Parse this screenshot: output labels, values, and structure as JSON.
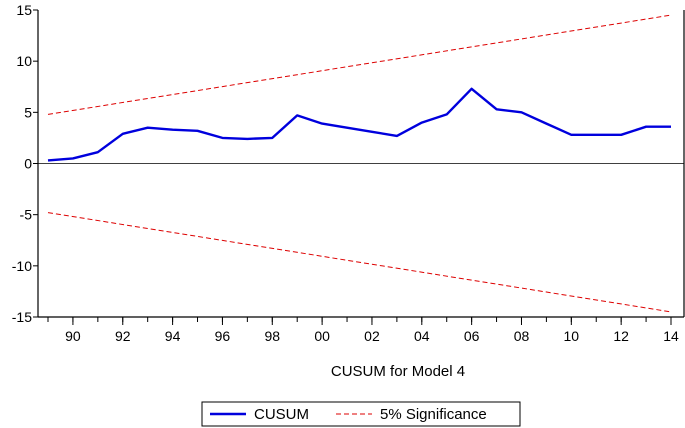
{
  "chart_data": {
    "type": "line",
    "title": "",
    "xlabel": "CUSUM for Model 4",
    "ylabel": "",
    "xlim": [
      1989,
      2014
    ],
    "ylim": [
      -15,
      15
    ],
    "yticks": [
      -15,
      -10,
      -5,
      0,
      5,
      10,
      15
    ],
    "yticklabels": [
      "-15",
      "-10",
      "-5",
      "0",
      "5",
      "10",
      "15"
    ],
    "xticks": [
      1990,
      1992,
      1994,
      1996,
      1998,
      2000,
      2002,
      2004,
      2006,
      2008,
      2010,
      2012,
      2014
    ],
    "xticklabels": [
      "90",
      "92",
      "94",
      "96",
      "98",
      "00",
      "02",
      "04",
      "06",
      "08",
      "10",
      "12",
      "14"
    ],
    "zero_line": true,
    "grid": false,
    "legend_position": "bottom-center",
    "series": [
      {
        "name": "CUSUM",
        "color": "#0000dd",
        "style": "solid",
        "x": [
          1989,
          1990,
          1991,
          1992,
          1993,
          1994,
          1995,
          1996,
          1997,
          1998,
          1999,
          2000,
          2001,
          2002,
          2003,
          2004,
          2005,
          2006,
          2007,
          2008,
          2009,
          2010,
          2011,
          2012,
          2013,
          2014
        ],
        "values": [
          0.3,
          0.5,
          1.1,
          2.9,
          3.5,
          3.3,
          3.2,
          2.5,
          2.4,
          2.5,
          4.7,
          3.9,
          3.5,
          3.1,
          2.7,
          4.0,
          4.8,
          7.3,
          5.3,
          5.0,
          3.9,
          2.8,
          2.8,
          2.8,
          3.6,
          3.6
        ]
      },
      {
        "name": "5% Significance",
        "color": "#dd0000",
        "style": "dashed",
        "x": [
          1989,
          2014
        ],
        "values": [
          4.8,
          14.5
        ]
      },
      {
        "name": "",
        "color": "#dd0000",
        "style": "dashed",
        "x": [
          1989,
          2014
        ],
        "values": [
          -4.8,
          -14.5
        ]
      }
    ]
  }
}
